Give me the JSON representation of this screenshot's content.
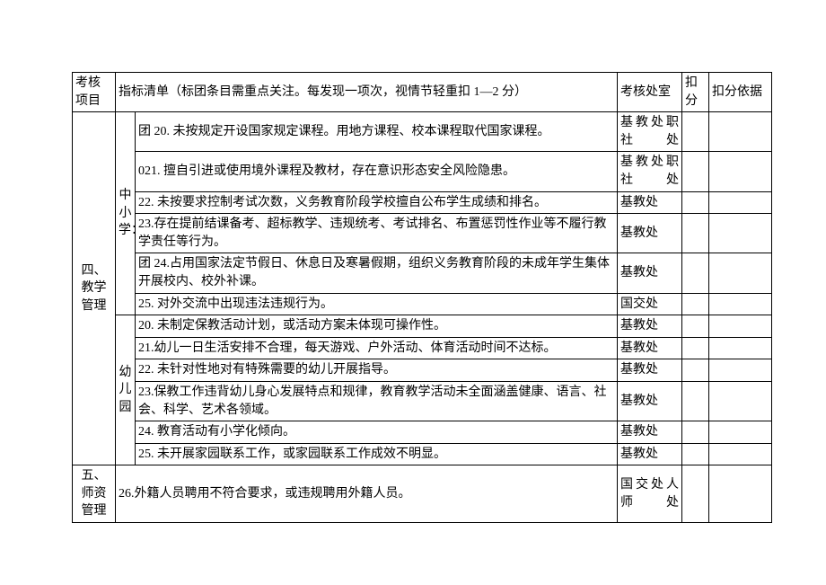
{
  "header": {
    "project": "考核项目",
    "indicator": "指标清单（标团条目需重点关注。每发现一项次，视情节轻重扣 1—2 分）",
    "office": "考核处室",
    "deduct": "扣分",
    "basis": "扣分依据"
  },
  "sections": {
    "four": {
      "title": "四、教学管理",
      "sub1": {
        "title": "中小学：",
        "rows": [
          {
            "text": "团 20. 未按规定开设国家规定课程。用地方课程、校本课程取代国家课程。",
            "office": "基教处职社处"
          },
          {
            "text": "021. 擅自引进或使用境外课程及教材，存在意识形态安全风险隐患。",
            "office": "基教处职社处"
          },
          {
            "text": "22. 未按要求控制考试次数，义务教育阶段学校擅自公布学生成绩和排名。",
            "office": "基教处"
          },
          {
            "text": "23.存在提前结课备考、超标教学、违规统考、考试排名、布置惩罚性作业等不履行教学责任等行为。",
            "office": "基教处"
          },
          {
            "text": "团 24.占用国家法定节假日、休息日及寒暑假期，组织义务教育阶段的未成年学生集体开展校内、校外补课。",
            "office": "基教处"
          },
          {
            "text": "25. 对外交流中出现违法违规行为。",
            "office": "国交处"
          }
        ]
      },
      "sub2": {
        "title": "幼儿园",
        "rows": [
          {
            "text": "20. 未制定保教活动计划，或活动方案未体现可操作性。",
            "office": "基教处"
          },
          {
            "text": "21.幼儿一日生活安排不合理，每天游戏、户外活动、体育活动时间不达标。",
            "office": "基教处"
          },
          {
            "text": "22. 未针对性地对有特殊需要的幼儿开展指导。",
            "office": "基教处"
          },
          {
            "text": "23.保教工作违背幼儿身心发展特点和规律，教育教学活动未全面涵盖健康、语言、社会、科学、艺术各领域。",
            "office": "基教处"
          },
          {
            "text": "24. 教育活动有小学化倾向。",
            "office": "基教处"
          },
          {
            "text": "25. 未开展家园联系工作，或家园联系工作成效不明显。",
            "office": "基教处"
          }
        ]
      }
    },
    "five": {
      "title": "五、师资管理",
      "row": {
        "text": "26.外籍人员聘用不符合要求，或违规聘用外籍人员。",
        "office": "国交处人师处"
      }
    }
  }
}
